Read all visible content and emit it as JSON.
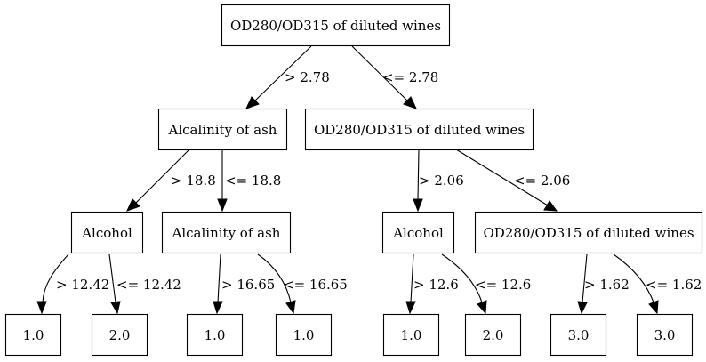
{
  "tree": {
    "nodes": {
      "root": "OD280/OD315 of diluted wines",
      "l1_left": "Alcalinity of ash",
      "l1_right": "OD280/OD315 of diluted wines",
      "l2_a": "Alcohol",
      "l2_b": "Alcalinity of ash",
      "l2_c": "Alcohol",
      "l2_d": "OD280/OD315 of diluted wines",
      "leaf_1": "1.0",
      "leaf_2": "2.0",
      "leaf_3": "1.0",
      "leaf_4": "1.0",
      "leaf_5": "1.0",
      "leaf_6": "2.0",
      "leaf_7": "3.0",
      "leaf_8": "3.0"
    },
    "edges": {
      "root_left": "> 2.78",
      "root_right": "<= 2.78",
      "l1l_left": "> 18.8",
      "l1l_right": "<= 18.8",
      "l1r_left": "> 2.06",
      "l1r_right": "<= 2.06",
      "a_left": "> 12.42",
      "a_right": "<= 12.42",
      "b_left": "> 16.65",
      "b_right": "<= 16.65",
      "c_left": "> 12.6",
      "c_right": "<= 12.6",
      "d_left": "> 1.62",
      "d_right": "<= 1.62"
    },
    "colors": {
      "stroke": "#000000",
      "fill": "#ffffff"
    }
  }
}
